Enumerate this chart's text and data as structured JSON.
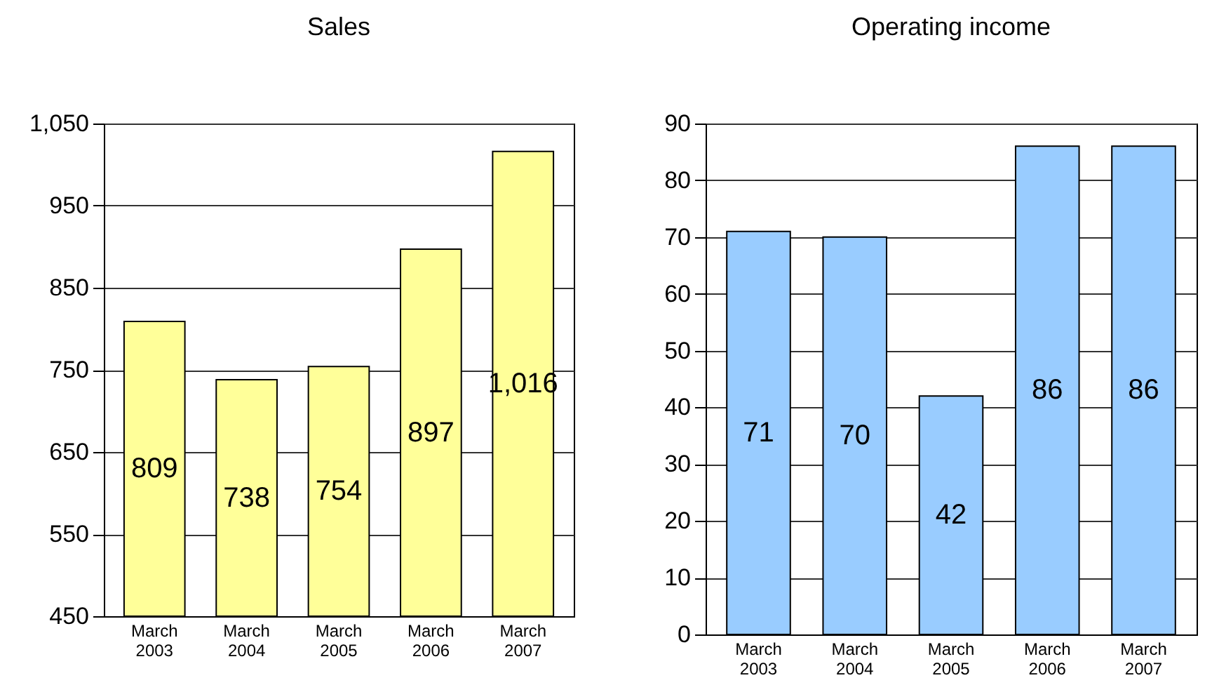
{
  "chart_data": [
    {
      "type": "bar",
      "title": "Sales",
      "categories": [
        "March 2003",
        "March 2004",
        "March 2005",
        "March 2006",
        "March 2007"
      ],
      "values": [
        809,
        738,
        754,
        897,
        1016
      ],
      "value_labels": [
        "809",
        "738",
        "754",
        "897",
        "1,016"
      ],
      "color": "#ffff99",
      "ylim": [
        450,
        1050
      ],
      "yticks": [
        450,
        550,
        650,
        750,
        850,
        950,
        {
          "value": 1050,
          "label": "1,050"
        }
      ],
      "grid": "y"
    },
    {
      "type": "bar",
      "title": "Operating income",
      "categories": [
        "March 2003",
        "March 2004",
        "March 2005",
        "March 2006",
        "March 2007"
      ],
      "values": [
        71,
        70,
        42,
        86,
        86
      ],
      "data_labels": true,
      "color": "#99ccff",
      "ylim": [
        0,
        90
      ],
      "yticks": [
        0,
        10,
        20,
        30,
        40,
        50,
        60,
        70,
        80,
        90
      ],
      "grid": "y"
    }
  ]
}
